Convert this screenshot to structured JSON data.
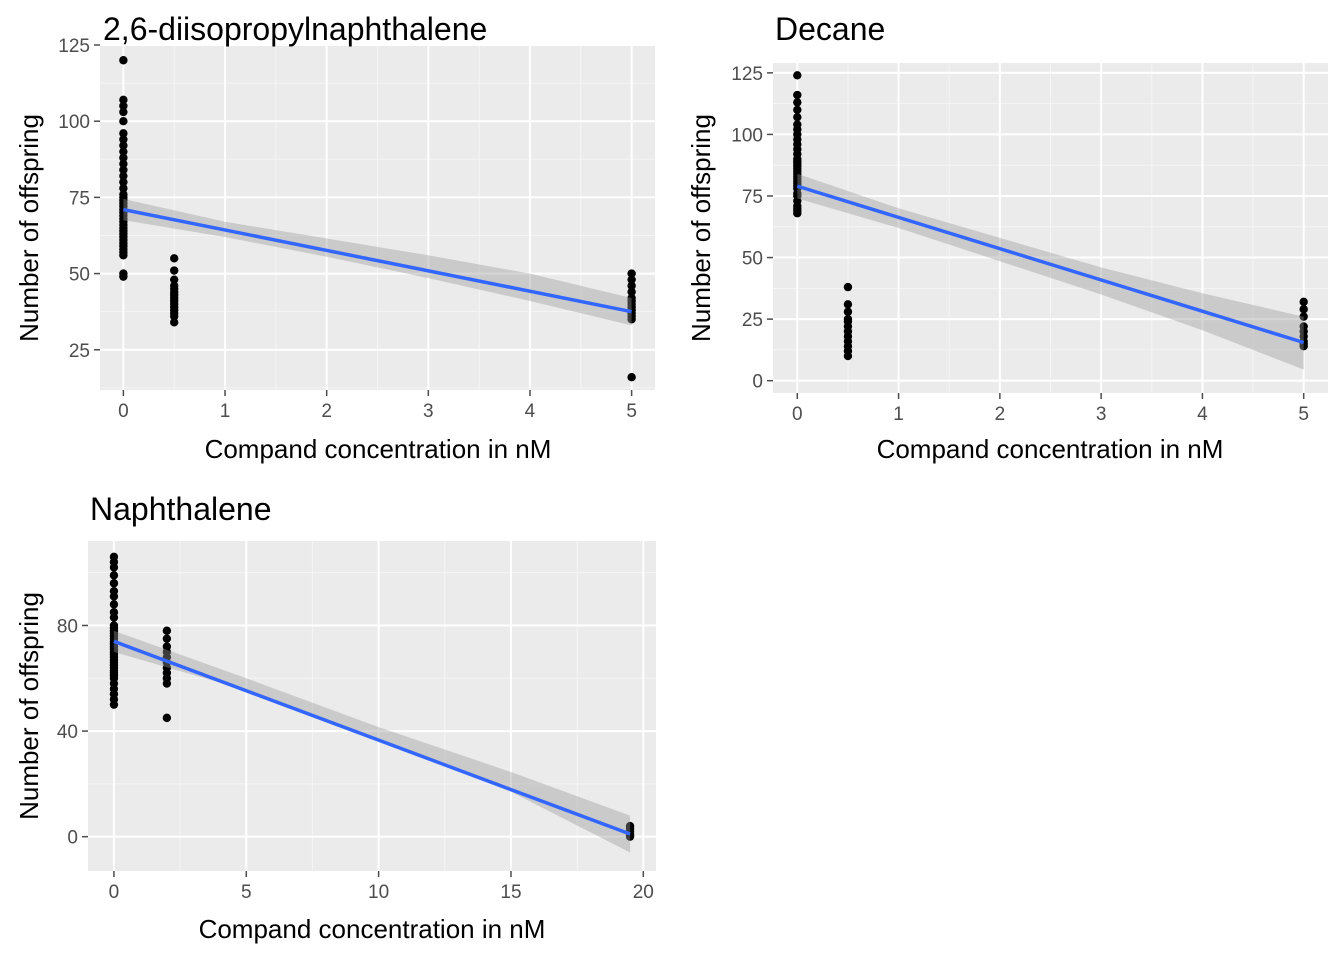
{
  "colors": {
    "panel_bg": "#ebebeb",
    "grid_major": "#ffffff",
    "grid_minor": "#f5f5f5",
    "point": "#000000",
    "fit_line": "#3366ff",
    "confidence_band": "#999999",
    "tick": "#4d4d4d"
  },
  "chart_data": [
    {
      "type": "scatter",
      "title": "2,6-diisopropylnaphthalene",
      "xlabel": "Compand concentration in nM",
      "ylabel": "Number of offspring",
      "xlim": [
        -0.23,
        5.23
      ],
      "ylim": [
        11.8,
        125
      ],
      "xticks": [
        0,
        1,
        2,
        3,
        4,
        5
      ],
      "yticks": [
        25,
        50,
        75,
        100,
        125
      ],
      "grid": true,
      "points": [
        {
          "x": 0,
          "y": [
            120,
            107,
            105,
            103,
            100,
            96,
            94,
            92,
            90,
            88,
            86,
            84,
            82,
            80,
            78,
            76,
            75,
            74,
            73,
            72,
            71,
            70,
            69,
            68,
            67,
            66,
            65,
            64,
            63,
            62,
            61,
            60,
            59,
            58,
            57,
            56,
            50,
            49
          ]
        },
        {
          "x": 0.5,
          "y": [
            55,
            51,
            48,
            46,
            45,
            44,
            43,
            42,
            41,
            40,
            39,
            38,
            37,
            36,
            34
          ]
        },
        {
          "x": 5,
          "y": [
            50,
            48,
            46,
            44,
            42,
            41,
            40,
            39,
            38,
            37,
            36,
            35,
            16
          ]
        }
      ],
      "fit": {
        "x": [
          0,
          5
        ],
        "y": [
          71,
          37.5
        ]
      },
      "band": {
        "x": [
          0,
          1,
          2,
          3,
          4,
          5
        ],
        "lower": [
          67.5,
          62,
          55.5,
          48.5,
          41,
          33
        ],
        "upper": [
          74.5,
          67,
          61.5,
          56,
          50,
          42
        ]
      }
    },
    {
      "type": "scatter",
      "title": "Decane",
      "xlabel": "Compand concentration in nM",
      "ylabel": "Number of offspring",
      "xlim": [
        -0.24,
        5.24
      ],
      "ylim": [
        -5,
        129
      ],
      "xticks": [
        0,
        1,
        2,
        3,
        4,
        5
      ],
      "yticks": [
        0,
        25,
        50,
        75,
        100,
        125
      ],
      "grid": true,
      "points": [
        {
          "x": 0,
          "y": [
            124,
            116,
            113,
            110,
            107,
            104,
            102,
            100,
            98,
            96,
            94,
            92,
            90,
            89,
            88,
            87,
            86,
            85,
            84,
            83,
            82,
            81,
            80,
            79,
            78,
            76,
            75,
            73,
            71,
            70,
            69,
            68
          ]
        },
        {
          "x": 0.5,
          "y": [
            38,
            31,
            28,
            25,
            24,
            22,
            20,
            18,
            16,
            14,
            12,
            10
          ]
        },
        {
          "x": 5,
          "y": [
            32,
            29,
            26,
            22,
            20,
            18,
            16,
            15,
            14
          ]
        }
      ],
      "fit": {
        "x": [
          0,
          5
        ],
        "y": [
          79,
          15.5
        ]
      },
      "band": {
        "x": [
          0,
          1,
          2,
          3,
          4,
          5
        ],
        "lower": [
          74,
          62,
          48.5,
          35,
          20.5,
          4.5
        ],
        "upper": [
          84,
          70,
          58,
          46,
          35.5,
          26
        ]
      }
    },
    {
      "type": "scatter",
      "title": "Naphthalene",
      "xlabel": "Compand concentration in nM",
      "ylabel": "Number of offspring",
      "xlim": [
        -0.98,
        20.48
      ],
      "ylim": [
        -13,
        112
      ],
      "xticks": [
        0,
        5,
        10,
        15,
        20
      ],
      "yticks": [
        0,
        40,
        80
      ],
      "grid": true,
      "points": [
        {
          "x": 0,
          "y": [
            106,
            104,
            102,
            99,
            96,
            93,
            91,
            88,
            85,
            83,
            80,
            79,
            78,
            77,
            76,
            75,
            74,
            73,
            72,
            71,
            70,
            69,
            68,
            67,
            66,
            65,
            64,
            63,
            62,
            61,
            60,
            58,
            56,
            54,
            52,
            50
          ]
        },
        {
          "x": 2,
          "y": [
            78,
            75,
            72,
            70,
            68,
            66,
            64,
            62,
            60,
            58,
            45
          ]
        },
        {
          "x": 19.5,
          "y": [
            4,
            3,
            2,
            1,
            0.5,
            0
          ]
        }
      ],
      "fit": {
        "x": [
          0,
          19.5
        ],
        "y": [
          74,
          1
        ]
      },
      "band": {
        "x": [
          0,
          5,
          10,
          15,
          19.5
        ],
        "lower": [
          70,
          55.5,
          36.5,
          17,
          -6
        ],
        "upper": [
          78,
          60,
          41.5,
          24.5,
          8
        ]
      }
    }
  ]
}
